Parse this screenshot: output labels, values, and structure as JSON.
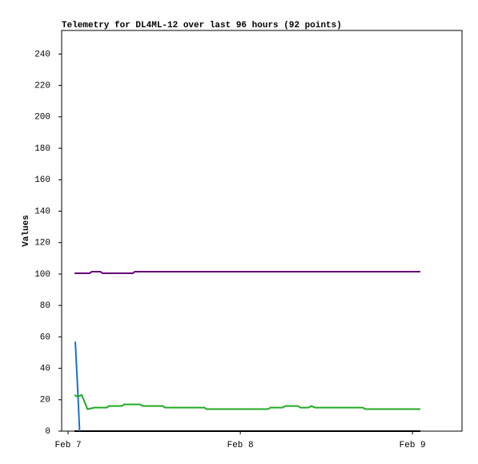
{
  "chart_data": {
    "type": "line",
    "title": "Telemetry for DL4ML-12 over last 96 hours (92 points)",
    "y_label": "Values",
    "xlim": [
      -0.9,
      54.9
    ],
    "xticks": [
      {
        "value": 0,
        "label": "Feb 7"
      },
      {
        "value": 24,
        "label": "Feb 8"
      },
      {
        "value": 48,
        "label": "Feb 9"
      }
    ],
    "ylim": [
      0,
      255
    ],
    "yticks": [
      0,
      20,
      40,
      60,
      80,
      100,
      120,
      140,
      160,
      180,
      200,
      220,
      240
    ],
    "series": [
      {
        "color": "#000000",
        "x": [
          0.9,
          49.1
        ],
        "values": [
          0,
          0
        ]
      },
      {
        "color": "#1a6fd0",
        "x": [
          1.0,
          1.3,
          1.6
        ],
        "values": [
          57,
          30,
          0
        ]
      },
      {
        "color": "#22aa22",
        "x": [
          0.9,
          1.3,
          1.9,
          2.7,
          3.7,
          5.4,
          5.7,
          7.5,
          7.8,
          10.0,
          10.4,
          13.2,
          13.5,
          19.0,
          19.3,
          27.9,
          28.2,
          29.9,
          30.3,
          32.0,
          32.4,
          33.5,
          33.9,
          34.4,
          41.1,
          41.4,
          49.1
        ],
        "values": [
          23,
          22,
          23,
          14,
          15,
          15,
          16,
          16,
          17,
          17,
          16,
          16,
          15,
          15,
          14,
          14,
          15,
          15,
          16,
          16,
          15,
          15,
          16,
          15,
          15,
          14,
          14
        ]
      },
      {
        "color": "#660077",
        "x": [
          0.9,
          3.0,
          3.3,
          4.5,
          4.8,
          9.0,
          9.3,
          49.1
        ],
        "values": [
          100.5,
          100.5,
          101.5,
          101.5,
          100.5,
          100.5,
          101.5,
          101.5
        ]
      }
    ]
  }
}
